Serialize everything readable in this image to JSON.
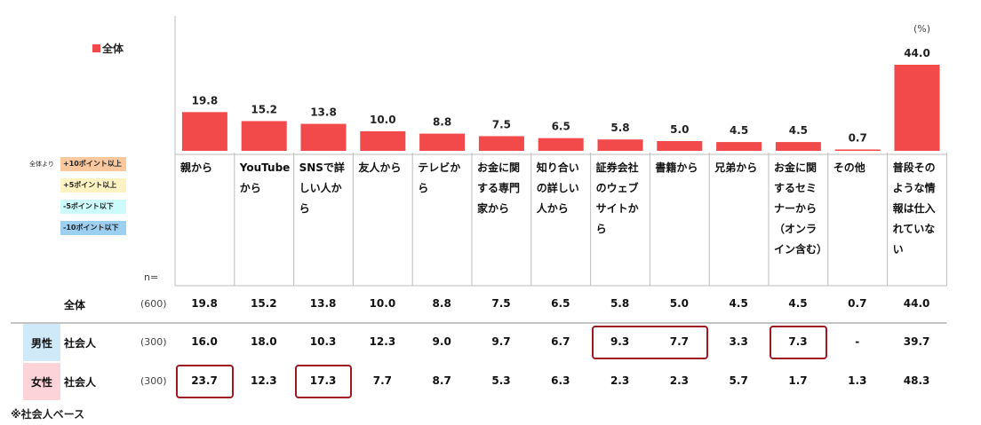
{
  "unit_label": "(%)",
  "legend": {
    "series_label": "全体",
    "series_color": "#f24a4a"
  },
  "diff_legend": {
    "title": "全体より",
    "items": [
      {
        "label": "+10ポイント以上",
        "color": "#f9c89e"
      },
      {
        "label": "+5ポイント以上",
        "color": "#fdf3c2"
      },
      {
        "label": "-5ポイント以下",
        "color": "#cdfafa"
      },
      {
        "label": "-10ポイント以下",
        "color": "#9ccff0"
      }
    ]
  },
  "n_header": "n=",
  "footnote": "※社会人ベース",
  "chart_data": {
    "type": "bar",
    "unit": "%",
    "categories": [
      "親から",
      "YouTubeから",
      "SNSで詳しい人から",
      "友人から",
      "テレビから",
      "お金に関する専門家から",
      "知り合いの詳しい人から",
      "証券会社のウェブサイトから",
      "書籍から",
      "兄弟から",
      "お金に関するセミナーから（オンライン含む）",
      "その他",
      "普段そのような情報は仕入れていない"
    ],
    "series": [
      {
        "name": "全体",
        "values": [
          19.8,
          15.2,
          13.8,
          10.0,
          8.8,
          7.5,
          6.5,
          5.8,
          5.0,
          4.5,
          4.5,
          0.7,
          44.0
        ]
      }
    ],
    "value_labels": [
      "19.8",
      "15.2",
      "13.8",
      "10.0",
      "8.8",
      "7.5",
      "6.5",
      "5.8",
      "5.0",
      "4.5",
      "4.5",
      "0.7",
      "44.0"
    ]
  },
  "table": {
    "rows": [
      {
        "gender": "",
        "group": "全体",
        "n": "(600)",
        "values": [
          "19.8",
          "15.2",
          "13.8",
          "10.0",
          "8.8",
          "7.5",
          "6.5",
          "5.8",
          "5.0",
          "4.5",
          "4.5",
          "0.7",
          "44.0"
        ],
        "highlights": []
      },
      {
        "gender": "男性",
        "group": "社会人",
        "n": "(300)",
        "gender_color": "#cfe9f9",
        "values": [
          "16.0",
          "18.0",
          "10.3",
          "12.3",
          "9.0",
          "9.7",
          "6.7",
          "9.3",
          "7.7",
          "3.3",
          "7.3",
          "-",
          "39.7"
        ],
        "highlights": [
          7,
          8,
          10
        ]
      },
      {
        "gender": "女性",
        "group": "社会人",
        "n": "(300)",
        "gender_color": "#fbd3d8",
        "values": [
          "23.7",
          "12.3",
          "17.3",
          "7.7",
          "8.7",
          "5.3",
          "6.3",
          "2.3",
          "2.3",
          "5.7",
          "1.7",
          "1.3",
          "48.3"
        ],
        "highlights": [
          0,
          2
        ]
      }
    ]
  }
}
